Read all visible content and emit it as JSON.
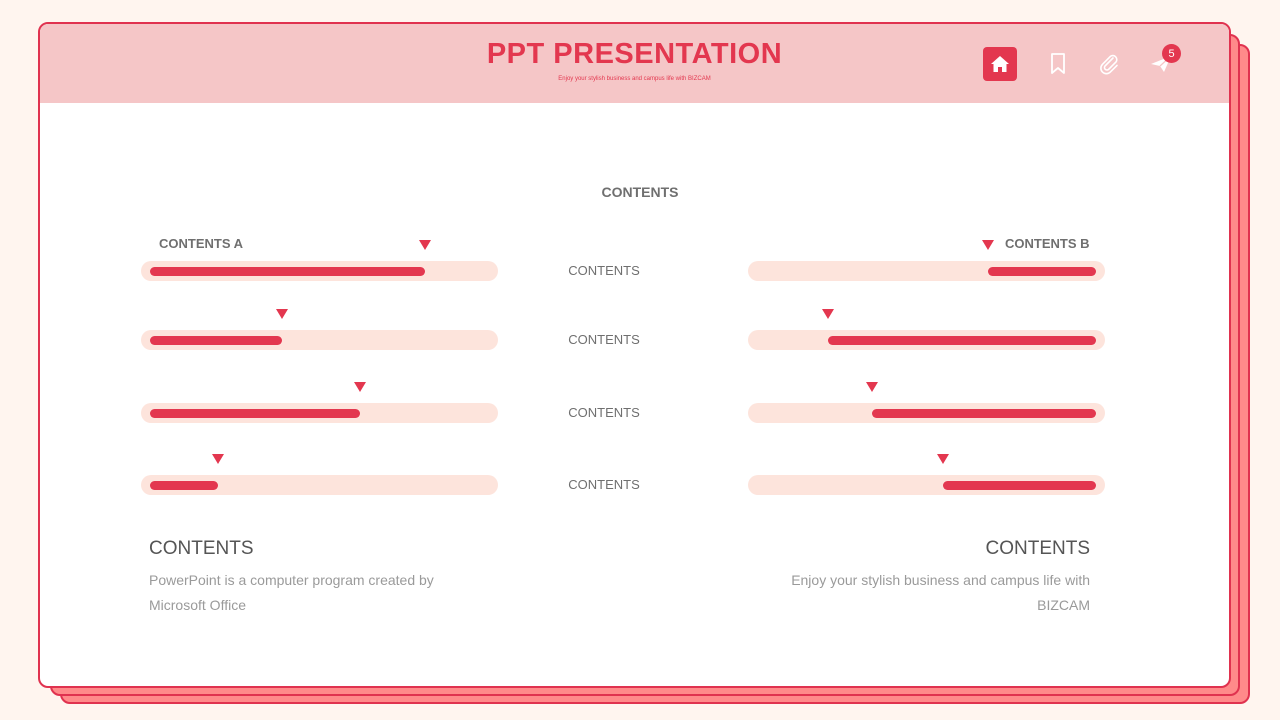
{
  "header": {
    "title": "PPT PRESENTATION",
    "subtitle": "Enjoy your stylish business and campus life with BIZCAM",
    "icons": [
      "home-icon",
      "bookmark-icon",
      "paperclip-icon",
      "send-icon"
    ],
    "notification_count": "5"
  },
  "main": {
    "center_title": "CONTENTS",
    "left_title": "CONTENTS A",
    "right_title": "CONTENTS B",
    "rows": [
      {
        "label": "CONTENTS",
        "left_level": 0.81,
        "right_level": 0.32
      },
      {
        "label": "CONTENTS",
        "left_level": 0.39,
        "right_level": 0.79
      },
      {
        "label": "CONTENTS",
        "left_level": 0.62,
        "right_level": 0.66
      },
      {
        "label": "CONTENTS",
        "left_level": 0.2,
        "right_level": 0.45
      }
    ]
  },
  "footer": {
    "left_title": "CONTENTS",
    "left_text": "PowerPoint is a computer program created by Microsoft Office",
    "right_title": "CONTENTS",
    "right_text": "Enjoy your stylish business and campus life with BIZCAM"
  },
  "colors": {
    "accent": "#e3374f",
    "header_bg": "#f5c6c7",
    "track": "#fde4dc",
    "page_bg": "#fff5ef",
    "shadow_layer": "#ff8a8a"
  }
}
